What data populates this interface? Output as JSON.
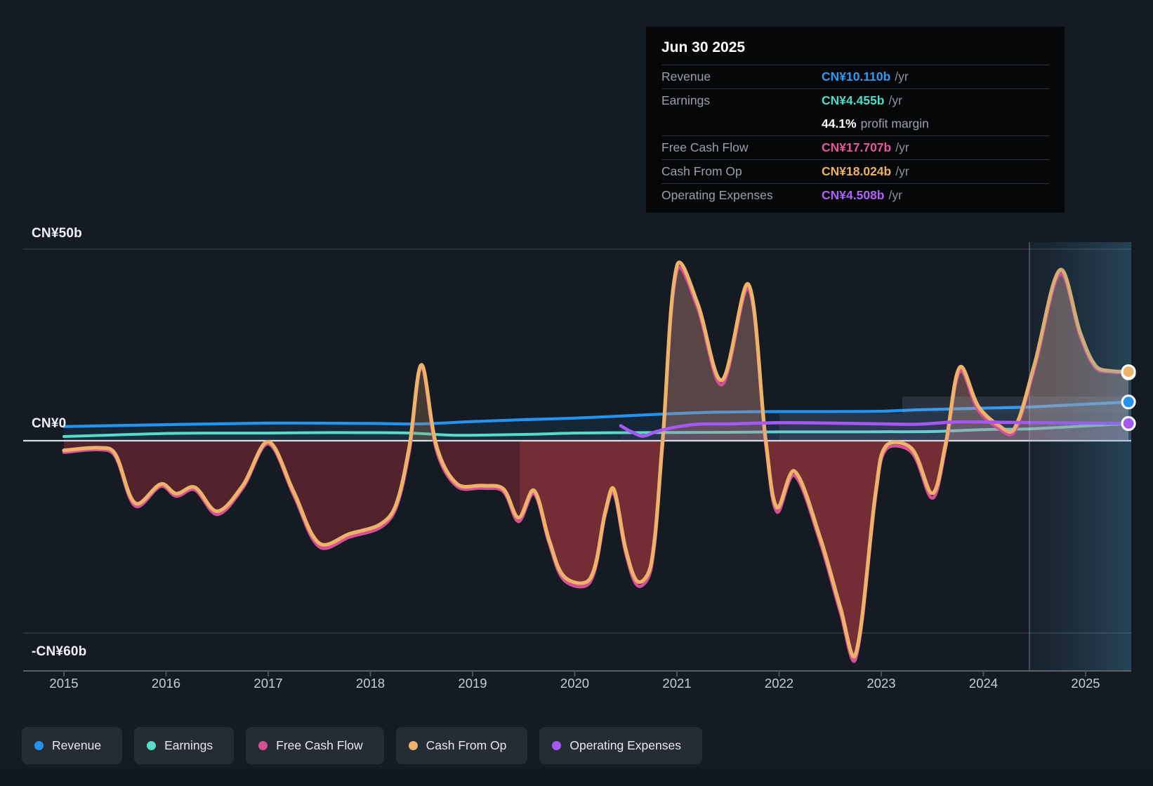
{
  "tooltip": {
    "title": "Jun 30 2025",
    "rows": [
      {
        "key": "revenue",
        "label": "Revenue",
        "value": "CN¥10.110b",
        "unit": "/yr",
        "color": "#2e9cf6"
      },
      {
        "key": "earnings",
        "label": "Earnings",
        "value": "CN¥4.455b",
        "unit": "/yr",
        "color": "#4edcc6"
      },
      {
        "key": "profit-margin",
        "label": "",
        "value": "44.1%",
        "unit": "profit margin",
        "is_margin": true
      },
      {
        "key": "free-cash-flow",
        "label": "Free Cash Flow",
        "value": "CN¥17.707b",
        "unit": "/yr",
        "color": "#e5589b"
      },
      {
        "key": "cash-from-op",
        "label": "Cash From Op",
        "value": "CN¥18.024b",
        "unit": "/yr",
        "color": "#ecb164"
      },
      {
        "key": "operating-expenses",
        "label": "Operating Expenses",
        "value": "CN¥4.508b",
        "unit": "/yr",
        "color": "#ad62f8"
      }
    ]
  },
  "y_axis": {
    "labels": [
      {
        "text": "CN¥50b",
        "value": 50
      },
      {
        "text": "CN¥0",
        "value": 0
      },
      {
        "text": "-CN¥60b",
        "value": -60
      }
    ]
  },
  "x_axis": {
    "years": [
      "2015",
      "2016",
      "2017",
      "2018",
      "2019",
      "2020",
      "2021",
      "2022",
      "2023",
      "2024",
      "2025"
    ]
  },
  "legend": [
    {
      "key": "revenue",
      "label": "Revenue",
      "color": "#2493ee"
    },
    {
      "key": "earnings",
      "label": "Earnings",
      "color": "#56dcc8"
    },
    {
      "key": "free-cash-flow",
      "label": "Free Cash Flow",
      "color": "#d84f95"
    },
    {
      "key": "cash-from-op",
      "label": "Cash From Op",
      "color": "#edb369"
    },
    {
      "key": "operating-expenses",
      "label": "Operating Expenses",
      "color": "#a659f2"
    }
  ],
  "chart_data": {
    "type": "line",
    "unit": "CN¥ billions per year",
    "title": "",
    "x_range": [
      2015.0,
      2025.42
    ],
    "ylim_note": "y gridlines at +50b, 0, -60b; axis compressed below zero",
    "grid": true,
    "legend_position": "bottom",
    "divider_year": 2024.45,
    "history_window_start": 2019.46,
    "end_markers_year": 2025.42,
    "series": [
      {
        "name": "Revenue",
        "color": "#2493ee",
        "end_value": 10.11,
        "points": [
          [
            2015,
            3.7
          ],
          [
            2016,
            4.2
          ],
          [
            2017,
            4.6
          ],
          [
            2018,
            4.5
          ],
          [
            2018.5,
            4.4
          ],
          [
            2019,
            5.0
          ],
          [
            2019.5,
            5.5
          ],
          [
            2020,
            5.9
          ],
          [
            2020.5,
            6.5
          ],
          [
            2021,
            7.1
          ],
          [
            2021.4,
            7.45
          ],
          [
            2022,
            7.6
          ],
          [
            2022.5,
            7.6
          ],
          [
            2023,
            7.7
          ],
          [
            2023.4,
            8.1
          ],
          [
            2024,
            8.5
          ],
          [
            2024.45,
            8.8
          ],
          [
            2024.9,
            9.4
          ],
          [
            2025.42,
            10.11
          ]
        ]
      },
      {
        "name": "Earnings",
        "color": "#56dcc8",
        "end_value": 4.455,
        "points": [
          [
            2015,
            1.1
          ],
          [
            2015.5,
            1.5
          ],
          [
            2016,
            1.9
          ],
          [
            2016.5,
            2.0
          ],
          [
            2017,
            2.0
          ],
          [
            2017.5,
            2.1
          ],
          [
            2018,
            2.1
          ],
          [
            2018.4,
            2.0
          ],
          [
            2018.8,
            1.45
          ],
          [
            2019.2,
            1.5
          ],
          [
            2019.6,
            1.7
          ],
          [
            2020,
            2.0
          ],
          [
            2020.5,
            2.1
          ],
          [
            2021,
            2.15
          ],
          [
            2021.5,
            2.2
          ],
          [
            2022,
            2.3
          ],
          [
            2022.5,
            2.3
          ],
          [
            2023,
            2.35
          ],
          [
            2023.5,
            2.4
          ],
          [
            2024,
            2.9
          ],
          [
            2024.45,
            3.1
          ],
          [
            2024.9,
            3.7
          ],
          [
            2025.42,
            4.455
          ]
        ]
      },
      {
        "name": "Free Cash Flow",
        "color": "#d84f95",
        "end_value": 17.707,
        "points": [
          [
            2015,
            -3.6
          ],
          [
            2015.35,
            -2.8
          ],
          [
            2015.5,
            -4.8
          ],
          [
            2015.7,
            -20.4
          ],
          [
            2015.95,
            -14.2
          ],
          [
            2016.1,
            -17.3
          ],
          [
            2016.28,
            -15.3
          ],
          [
            2016.5,
            -23
          ],
          [
            2016.75,
            -14.8
          ],
          [
            2017,
            -1
          ],
          [
            2017.25,
            -17
          ],
          [
            2017.5,
            -33.1
          ],
          [
            2017.8,
            -30
          ],
          [
            2018.1,
            -27
          ],
          [
            2018.25,
            -21
          ],
          [
            2018.38,
            -3.5
          ],
          [
            2018.5,
            18.9
          ],
          [
            2018.65,
            -3.3
          ],
          [
            2018.85,
            -14.3
          ],
          [
            2019.1,
            -14.8
          ],
          [
            2019.3,
            -15.8
          ],
          [
            2019.45,
            -25.2
          ],
          [
            2019.6,
            -16.5
          ],
          [
            2019.75,
            -32
          ],
          [
            2019.9,
            -43.6
          ],
          [
            2020.15,
            -44.1
          ],
          [
            2020.3,
            -23
          ],
          [
            2020.38,
            -16.2
          ],
          [
            2020.5,
            -35.2
          ],
          [
            2020.62,
            -45.3
          ],
          [
            2020.75,
            -39.4
          ],
          [
            2020.86,
            -1.5
          ],
          [
            2021,
            44.3
          ],
          [
            2021.2,
            34.8
          ],
          [
            2021.44,
            14.6
          ],
          [
            2021.7,
            39.6
          ],
          [
            2021.87,
            -1.3
          ],
          [
            2021.98,
            -22.2
          ],
          [
            2022.15,
            -10.8
          ],
          [
            2022.4,
            -31.4
          ],
          [
            2022.6,
            -53.5
          ],
          [
            2022.75,
            -67.9
          ],
          [
            2022.95,
            -16.3
          ],
          [
            2023.05,
            -2.6
          ],
          [
            2023.3,
            -3.7
          ],
          [
            2023.5,
            -17.9
          ],
          [
            2023.63,
            -2.2
          ],
          [
            2023.77,
            18.1
          ],
          [
            2023.95,
            8
          ],
          [
            2024.15,
            3.2
          ],
          [
            2024.3,
            2.2
          ],
          [
            2024.5,
            19
          ],
          [
            2024.75,
            43.5
          ],
          [
            2024.95,
            27
          ],
          [
            2025.1,
            18.9
          ],
          [
            2025.25,
            17.9
          ],
          [
            2025.42,
            17.71
          ]
        ]
      },
      {
        "name": "Cash From Op",
        "color": "#edb369",
        "end_value": 18.024,
        "has_area": true,
        "points": [
          [
            2015,
            -3
          ],
          [
            2015.35,
            -2.2
          ],
          [
            2015.5,
            -4
          ],
          [
            2015.7,
            -19.5
          ],
          [
            2015.95,
            -13.5
          ],
          [
            2016.1,
            -16.5
          ],
          [
            2016.28,
            -14.5
          ],
          [
            2016.5,
            -22
          ],
          [
            2016.75,
            -14
          ],
          [
            2017,
            -0.3
          ],
          [
            2017.25,
            -16
          ],
          [
            2017.5,
            -32
          ],
          [
            2017.8,
            -29
          ],
          [
            2018.1,
            -26
          ],
          [
            2018.25,
            -20
          ],
          [
            2018.38,
            -2
          ],
          [
            2018.5,
            19.8
          ],
          [
            2018.65,
            -2
          ],
          [
            2018.85,
            -13.5
          ],
          [
            2019.1,
            -14
          ],
          [
            2019.3,
            -15
          ],
          [
            2019.45,
            -24
          ],
          [
            2019.6,
            -15.5
          ],
          [
            2019.75,
            -31
          ],
          [
            2019.9,
            -42.5
          ],
          [
            2020.15,
            -43
          ],
          [
            2020.3,
            -22
          ],
          [
            2020.38,
            -15
          ],
          [
            2020.5,
            -34
          ],
          [
            2020.62,
            -44
          ],
          [
            2020.75,
            -38
          ],
          [
            2020.86,
            0
          ],
          [
            2021,
            45.6
          ],
          [
            2021.2,
            36
          ],
          [
            2021.44,
            15.8
          ],
          [
            2021.7,
            40.8
          ],
          [
            2021.87,
            0
          ],
          [
            2021.98,
            -20.8
          ],
          [
            2022.15,
            -9.5
          ],
          [
            2022.4,
            -30
          ],
          [
            2022.6,
            -52
          ],
          [
            2022.75,
            -66.5
          ],
          [
            2022.95,
            -15
          ],
          [
            2023.05,
            -1.5
          ],
          [
            2023.3,
            -2.5
          ],
          [
            2023.5,
            -16.4
          ],
          [
            2023.63,
            -1
          ],
          [
            2023.77,
            19.2
          ],
          [
            2023.95,
            9
          ],
          [
            2024.15,
            4
          ],
          [
            2024.3,
            3
          ],
          [
            2024.5,
            20
          ],
          [
            2024.75,
            44.6
          ],
          [
            2024.95,
            28
          ],
          [
            2025.1,
            19.5
          ],
          [
            2025.25,
            18.2
          ],
          [
            2025.42,
            18.02
          ]
        ]
      },
      {
        "name": "Operating Expenses",
        "color": "#a659f2",
        "end_value": 4.508,
        "points": [
          [
            2020.45,
            3.9
          ],
          [
            2020.55,
            2.4
          ],
          [
            2020.67,
            1.2
          ],
          [
            2020.8,
            2.4
          ],
          [
            2021,
            3.6
          ],
          [
            2021.2,
            4.3
          ],
          [
            2021.5,
            4.4
          ],
          [
            2022,
            4.7
          ],
          [
            2022.5,
            4.6
          ],
          [
            2023,
            4.4
          ],
          [
            2023.35,
            4.3
          ],
          [
            2023.75,
            4.9
          ],
          [
            2024.2,
            4.8
          ],
          [
            2024.6,
            4.7
          ],
          [
            2025.42,
            4.508
          ]
        ]
      }
    ]
  },
  "colors": {
    "background": "#151b23",
    "gridline": "#3a414b",
    "zero_line": "#d9dde4",
    "axis_line": "#5a616b",
    "tooltip_bg": "#050708",
    "legend_chip_bg": "#262c35",
    "neg_fill_old": "rgba(98,38,47,0.80)",
    "neg_fill_recent": "rgba(130,48,56,0.85)",
    "neg_fill_forecast": "rgba(200,110,120,0.38)",
    "pos_fill_old": "rgba(175,135,88,0.30)",
    "pos_fill_recent": "rgba(205,148,130,0.36)",
    "pos_fill_forecast": "rgba(222,168,150,0.42)",
    "forecast_divider": "rgba(150,200,230,0.28)"
  }
}
